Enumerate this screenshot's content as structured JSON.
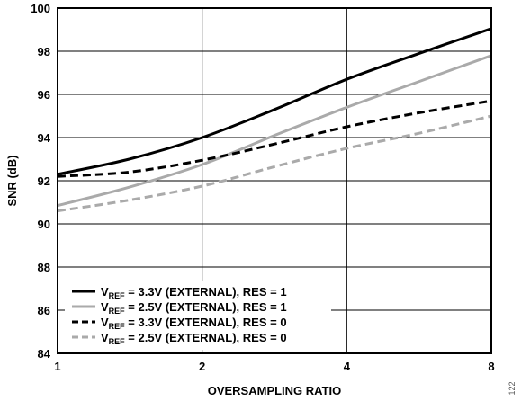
{
  "chart_data": {
    "type": "line",
    "title": "",
    "xlabel": "OVERSAMPLING RATIO",
    "ylabel": "SNR (dB)",
    "x_scale": "log2",
    "x_ticks": [
      1,
      2,
      4,
      8
    ],
    "y_ticks": [
      84,
      86,
      88,
      90,
      92,
      94,
      96,
      98,
      100
    ],
    "xlim": [
      1,
      8
    ],
    "ylim": [
      84,
      100
    ],
    "grid": true,
    "legend_position": "bottom-left",
    "series": [
      {
        "name_main": "V",
        "name_sub": "REF",
        "name_rest": " = 3.3V (EXTERNAL), RES = 1",
        "color": "#000000",
        "dash": "solid",
        "x": [
          1,
          1.41,
          2,
          2.83,
          4,
          5.66,
          8
        ],
        "values": [
          92.3,
          93.0,
          94.0,
          95.3,
          96.7,
          97.9,
          99.05
        ]
      },
      {
        "name_main": "V",
        "name_sub": "REF",
        "name_rest": " = 2.5V (EXTERNAL), RES = 1",
        "color": "#aaaaaa",
        "dash": "solid",
        "x": [
          1,
          1.41,
          2,
          2.83,
          4,
          5.66,
          8
        ],
        "values": [
          90.85,
          91.7,
          92.75,
          94.1,
          95.4,
          96.6,
          97.8
        ]
      },
      {
        "name_main": "V",
        "name_sub": "REF",
        "name_rest": " = 3.3V (EXTERNAL), RES = 0",
        "color": "#000000",
        "dash": "dashed",
        "x": [
          1,
          1.41,
          2,
          2.83,
          4,
          5.66,
          8
        ],
        "values": [
          92.2,
          92.4,
          92.95,
          93.7,
          94.5,
          95.15,
          95.7
        ]
      },
      {
        "name_main": "V",
        "name_sub": "REF",
        "name_rest": " = 2.5V (EXTERNAL), RES = 0",
        "color": "#aaaaaa",
        "dash": "dashed",
        "x": [
          1,
          1.41,
          2,
          2.83,
          4,
          5.66,
          8
        ],
        "values": [
          90.6,
          91.1,
          91.75,
          92.65,
          93.5,
          94.2,
          95.0
        ]
      }
    ],
    "figure_id": "122"
  }
}
